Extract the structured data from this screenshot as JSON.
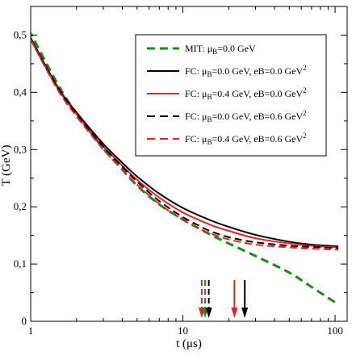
{
  "chart_data": {
    "type": "line",
    "xlabel": "t (μs)",
    "ylabel": "T (GeV)",
    "xscale": "log",
    "xlim": [
      1,
      120
    ],
    "ylim": [
      0,
      0.55
    ],
    "xticks": [
      1,
      10,
      100
    ],
    "xtick_labels": [
      "1",
      "10",
      "100"
    ],
    "yticks": [
      0,
      0.1,
      0.2,
      0.3,
      0.4,
      0.5
    ],
    "ytick_labels": [
      "0",
      "0,1",
      "0,2",
      "0,3",
      "0,4",
      "0,5"
    ],
    "grid": false,
    "legend_position": "top-right",
    "series": [
      {
        "name": "MIT: μB=0.0 GeV",
        "legend_parts": [
          [
            "MIT: μ",
            ""
          ],
          [
            "B",
            "sub"
          ],
          [
            "=0.0 GeV",
            ""
          ]
        ],
        "color": "#1a8a1a",
        "dash": true,
        "x": [
          0.97,
          1.5,
          2,
          3,
          4,
          5,
          7,
          10,
          15,
          20,
          30,
          50,
          70,
          100
        ],
        "y": [
          0.51,
          0.415,
          0.363,
          0.302,
          0.265,
          0.237,
          0.204,
          0.178,
          0.152,
          0.136,
          0.114,
          0.085,
          0.06,
          0.033
        ]
      },
      {
        "name": "FC: μB=0.0 GeV, eB=0.0 GeV2",
        "legend_parts": [
          [
            "FC: μ",
            ""
          ],
          [
            "B",
            "sub"
          ],
          [
            "=0.0 GeV, eB=0.0 GeV",
            ""
          ],
          [
            "2",
            "sup"
          ]
        ],
        "color": "#000000",
        "dash": false,
        "x": [
          1,
          1.5,
          2,
          3,
          4,
          5,
          7,
          10,
          15,
          20,
          30,
          50,
          70,
          105
        ],
        "y": [
          0.495,
          0.41,
          0.365,
          0.31,
          0.277,
          0.253,
          0.223,
          0.198,
          0.177,
          0.165,
          0.151,
          0.139,
          0.134,
          0.131
        ]
      },
      {
        "name": "FC: μB=0.4 GeV, eB=0.0 GeV2",
        "legend_parts": [
          [
            "FC: μ",
            ""
          ],
          [
            "B",
            "sub"
          ],
          [
            "=0.4 GeV, eB=0.0 GeV",
            ""
          ],
          [
            "2",
            "sup"
          ]
        ],
        "color": "#e8231f",
        "dash": false,
        "x": [
          1,
          1.5,
          2,
          3,
          4,
          5,
          7,
          10,
          15,
          20,
          30,
          50,
          70,
          105
        ],
        "y": [
          0.492,
          0.407,
          0.362,
          0.306,
          0.272,
          0.247,
          0.216,
          0.19,
          0.169,
          0.158,
          0.145,
          0.136,
          0.132,
          0.129
        ]
      },
      {
        "name": "FC: μB=0.0 GeV, eB=0.6 GeV2",
        "legend_parts": [
          [
            "FC: μ",
            ""
          ],
          [
            "B",
            "sub"
          ],
          [
            "=0.0 GeV, eB=0.6 GeV",
            ""
          ],
          [
            "2",
            "sup"
          ]
        ],
        "color": "#000000",
        "dash": true,
        "x": [
          1,
          1.5,
          2,
          3,
          4,
          5,
          7,
          10,
          13,
          15,
          20,
          30,
          50,
          70,
          105
        ],
        "y": [
          0.494,
          0.408,
          0.362,
          0.305,
          0.27,
          0.244,
          0.21,
          0.182,
          0.166,
          0.158,
          0.147,
          0.138,
          0.132,
          0.13,
          0.128
        ]
      },
      {
        "name": "FC: μB=0.4 GeV, eB=0.6 GeV2",
        "legend_parts": [
          [
            "FC: μ",
            ""
          ],
          [
            "B",
            "sub"
          ],
          [
            "=0.4 GeV, eB=0.6 GeV",
            ""
          ],
          [
            "2",
            "sup"
          ]
        ],
        "color": "#e8231f",
        "dash": true,
        "x": [
          1,
          1.5,
          2,
          3,
          4,
          5,
          7,
          10,
          13,
          15,
          20,
          30,
          50,
          70,
          105
        ],
        "y": [
          0.492,
          0.405,
          0.358,
          0.3,
          0.265,
          0.239,
          0.205,
          0.177,
          0.161,
          0.154,
          0.143,
          0.134,
          0.129,
          0.127,
          0.125
        ]
      }
    ],
    "arrows": [
      {
        "x": 13.3,
        "color": "#e8231f",
        "dash": true
      },
      {
        "x": 14.0,
        "color": "#1a8a1a",
        "dash": true
      },
      {
        "x": 14.8,
        "color": "#000000",
        "dash": true
      },
      {
        "x": 21.8,
        "color": "#e8231f",
        "dash": false
      },
      {
        "x": 25.5,
        "color": "#000000",
        "dash": false
      }
    ]
  }
}
